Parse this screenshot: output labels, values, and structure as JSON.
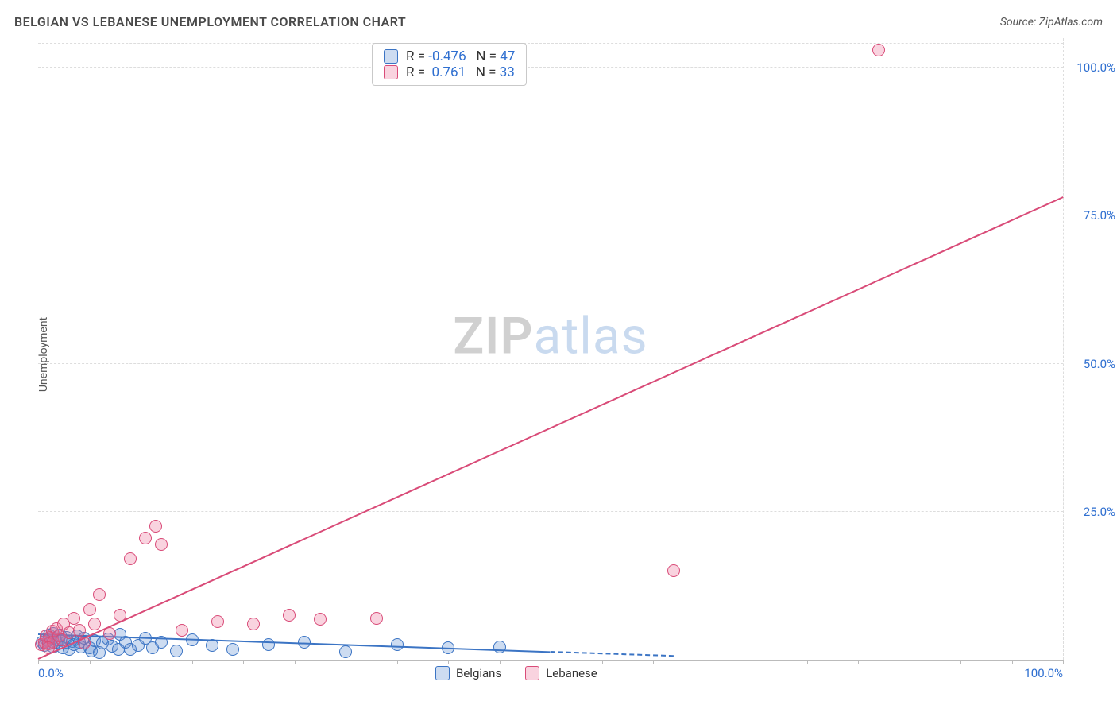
{
  "title": "BELGIAN VS LEBANESE UNEMPLOYMENT CORRELATION CHART",
  "source": "Source: ZipAtlas.com",
  "y_axis_label": "Unemployment",
  "chart": {
    "type": "scatter",
    "xlim": [
      0,
      100
    ],
    "ylim": [
      0,
      105
    ],
    "x_ticks_major": [
      0,
      100
    ],
    "x_ticks_minor_step": 5,
    "y_ticks": [
      25,
      50,
      75,
      100
    ],
    "x_tick_labels": {
      "0": "0.0%",
      "100": "100.0%"
    },
    "y_tick_labels": {
      "25": "25.0%",
      "50": "50.0%",
      "75": "75.0%",
      "100": "100.0%"
    },
    "tick_label_color": "#2f6fd0",
    "grid_color": "#dddddd",
    "axis_color": "#bbbbbb",
    "background_color": "#ffffff",
    "tick_label_fontsize": 15,
    "point_radius": 8,
    "point_border_width": 1.5,
    "point_fill_opacity": 0.25,
    "trend_line_width": 2
  },
  "watermark": {
    "text_strong": "ZIP",
    "text_light": "atlas",
    "strong_color": "rgba(120,120,120,0.35)",
    "light_color": "rgba(100,150,210,0.35)",
    "fontsize": 64
  },
  "series": [
    {
      "name": "Belgians",
      "color_stroke": "#3b74c4",
      "color_fill": "rgba(90,140,210,0.3)",
      "R": "-0.476",
      "N": "47",
      "trend": {
        "x1": 0,
        "y1": 4.2,
        "x2": 50,
        "y2": 1.2,
        "style": "solid"
      },
      "trend_ext": {
        "x1": 50,
        "y1": 1.2,
        "x2": 62,
        "y2": 0.5,
        "style": "dashed"
      },
      "points": [
        [
          0.4,
          3.0
        ],
        [
          0.6,
          2.4
        ],
        [
          0.8,
          3.5
        ],
        [
          1.0,
          3.2
        ],
        [
          1.1,
          4.1
        ],
        [
          1.2,
          2.8
        ],
        [
          1.4,
          3.6
        ],
        [
          1.5,
          4.5
        ],
        [
          1.5,
          2.2
        ],
        [
          1.8,
          3.0
        ],
        [
          2.0,
          3.4
        ],
        [
          2.2,
          4.2
        ],
        [
          2.4,
          2.0
        ],
        [
          2.7,
          2.9
        ],
        [
          2.8,
          3.7
        ],
        [
          3.0,
          1.8
        ],
        [
          3.3,
          3.1
        ],
        [
          3.5,
          2.5
        ],
        [
          3.8,
          4.0
        ],
        [
          4.0,
          3.0
        ],
        [
          4.2,
          2.2
        ],
        [
          4.5,
          3.6
        ],
        [
          5.0,
          2.0
        ],
        [
          5.2,
          1.5
        ],
        [
          5.5,
          3.2
        ],
        [
          6.0,
          1.2
        ],
        [
          6.3,
          2.8
        ],
        [
          6.8,
          3.5
        ],
        [
          7.2,
          2.3
        ],
        [
          7.8,
          1.7
        ],
        [
          8.0,
          4.3
        ],
        [
          8.5,
          3.0
        ],
        [
          9.0,
          1.8
        ],
        [
          9.8,
          2.4
        ],
        [
          10.5,
          3.6
        ],
        [
          11.2,
          2.0
        ],
        [
          12.0,
          3.0
        ],
        [
          13.5,
          1.5
        ],
        [
          15.0,
          3.3
        ],
        [
          17.0,
          2.4
        ],
        [
          19.0,
          1.8
        ],
        [
          22.5,
          2.5
        ],
        [
          26.0,
          3.0
        ],
        [
          30.0,
          1.3
        ],
        [
          35.0,
          2.6
        ],
        [
          40.0,
          2.0
        ],
        [
          45.0,
          2.2
        ]
      ]
    },
    {
      "name": "Lebanese",
      "color_stroke": "#d94b78",
      "color_fill": "rgba(235,110,150,0.3)",
      "R": "0.761",
      "N": "33",
      "trend": {
        "x1": 0,
        "y1": 0,
        "x2": 100,
        "y2": 78,
        "style": "solid"
      },
      "points": [
        [
          0.3,
          2.5
        ],
        [
          0.6,
          3.0
        ],
        [
          0.8,
          4.0
        ],
        [
          1.0,
          2.7
        ],
        [
          1.2,
          3.8
        ],
        [
          1.4,
          4.8
        ],
        [
          1.5,
          3.0
        ],
        [
          1.8,
          5.2
        ],
        [
          2.0,
          4.0
        ],
        [
          2.3,
          3.4
        ],
        [
          2.5,
          6.0
        ],
        [
          3.0,
          4.6
        ],
        [
          3.5,
          7.0
        ],
        [
          4.0,
          5.0
        ],
        [
          4.5,
          2.8
        ],
        [
          5.0,
          8.5
        ],
        [
          5.5,
          6.0
        ],
        [
          6.0,
          11.0
        ],
        [
          7.0,
          4.5
        ],
        [
          8.0,
          7.5
        ],
        [
          9.0,
          17.0
        ],
        [
          10.5,
          20.5
        ],
        [
          11.5,
          22.5
        ],
        [
          12.0,
          19.5
        ],
        [
          14.0,
          5.0
        ],
        [
          17.5,
          6.5
        ],
        [
          21.0,
          6.0
        ],
        [
          24.5,
          7.5
        ],
        [
          27.5,
          6.8
        ],
        [
          33.0,
          7.0
        ],
        [
          62.0,
          15.0
        ],
        [
          82.0,
          103.0
        ],
        [
          1.0,
          2.0
        ]
      ]
    }
  ],
  "stats_legend": {
    "R_label": "R =",
    "N_label": "N =",
    "label_color": "#333333",
    "value_color": "#2f6fd0",
    "fontsize": 17
  },
  "series_legend_fontsize": 15
}
